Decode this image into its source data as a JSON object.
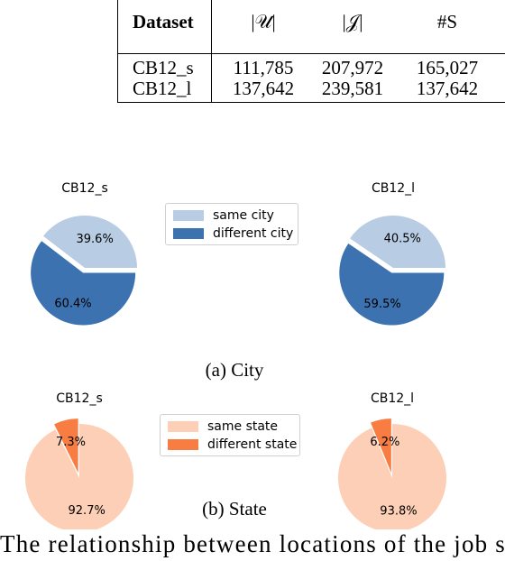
{
  "table": {
    "headers": [
      "Dataset",
      "|𝒰|",
      "|𝒥|",
      "#S"
    ],
    "rows": [
      [
        "CB12_s",
        "111,785",
        "207,972",
        "165,027"
      ],
      [
        "CB12_l",
        "137,642",
        "239,581",
        "137,642"
      ]
    ]
  },
  "colors": {
    "same_city": "#b8cce4",
    "different_city": "#3c72b0",
    "same_state": "#fdcfb6",
    "different_state": "#f87d43"
  },
  "subcaptions": {
    "a": "(a) City",
    "b": "(b) State"
  },
  "caption": "The relationship between locations of the job se",
  "chart_data": [
    {
      "type": "pie",
      "group": "city",
      "legend": [
        "same city",
        "different city"
      ],
      "charts": [
        {
          "title": "CB12_s",
          "values": [
            39.6,
            60.4
          ],
          "labels": [
            "39.6%",
            "60.4%"
          ]
        },
        {
          "title": "CB12_l",
          "values": [
            40.5,
            59.5
          ],
          "labels": [
            "40.5%",
            "59.5%"
          ]
        }
      ],
      "explode": [
        0,
        0.1
      ],
      "legend_position": "center"
    },
    {
      "type": "pie",
      "group": "state",
      "legend": [
        "same state",
        "different state"
      ],
      "charts": [
        {
          "title": "CB12_s",
          "values": [
            92.7,
            7.3
          ],
          "labels": [
            "92.7%",
            "7.3%"
          ]
        },
        {
          "title": "CB12_l",
          "values": [
            93.8,
            6.2
          ],
          "labels": [
            "93.8%",
            "6.2%"
          ]
        }
      ],
      "explode": [
        0,
        0.1
      ],
      "legend_position": "center"
    }
  ]
}
